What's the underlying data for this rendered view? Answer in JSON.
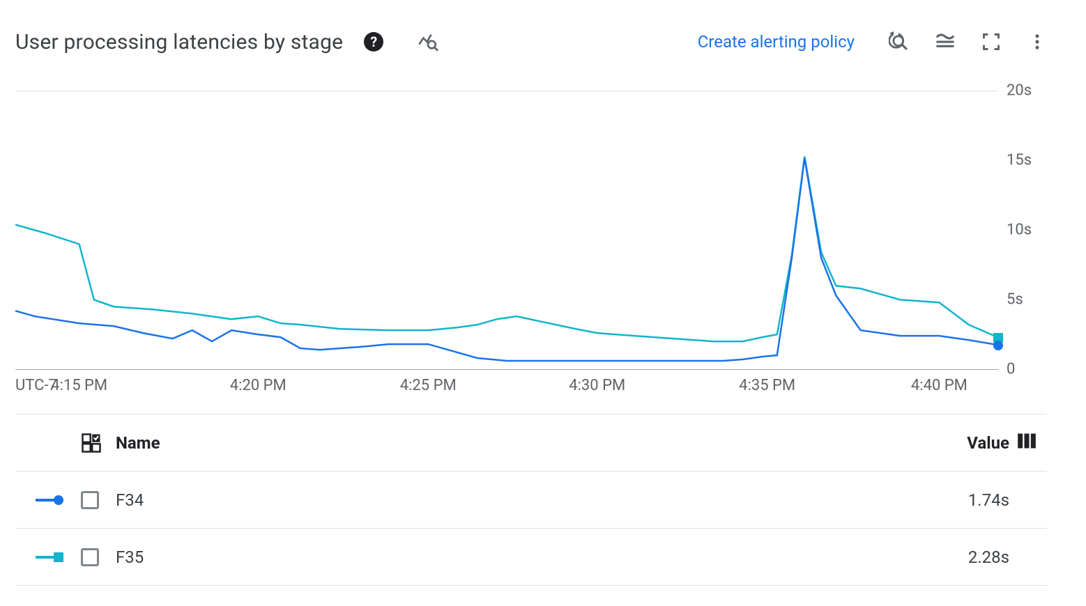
{
  "header": {
    "title": "User processing latencies by stage",
    "alert_link": "Create alerting policy"
  },
  "chart": {
    "type": "line",
    "timezone_label": "UTC-7",
    "y": {
      "min": 0,
      "max": 20,
      "step": 5,
      "labels": [
        "0",
        "5s",
        "10s",
        "15s",
        "20s"
      ]
    },
    "x": {
      "labels": [
        "4:15 PM",
        "4:20 PM",
        "4:25 PM",
        "4:30 PM",
        "4:35 PM",
        "4:40 PM"
      ],
      "positions_pct": [
        6.5,
        24.7,
        42.0,
        59.2,
        76.5,
        94.0
      ]
    },
    "colors": {
      "f34": "#1a73e8",
      "f35": "#12b5cb",
      "axis": "#9aa0a6",
      "text": "#5f6368",
      "grid_top": "#e0e0e0"
    },
    "line_width": 2.5,
    "series": {
      "f34": [
        [
          0,
          4.2
        ],
        [
          2,
          3.8
        ],
        [
          6.5,
          3.3
        ],
        [
          10,
          3.1
        ],
        [
          13,
          2.6
        ],
        [
          16,
          2.2
        ],
        [
          18,
          2.8
        ],
        [
          20,
          2.0
        ],
        [
          22,
          2.8
        ],
        [
          24.7,
          2.5
        ],
        [
          27,
          2.3
        ],
        [
          29,
          1.5
        ],
        [
          31,
          1.4
        ],
        [
          35,
          1.6
        ],
        [
          38,
          1.8
        ],
        [
          42,
          1.8
        ],
        [
          44,
          1.4
        ],
        [
          47,
          0.8
        ],
        [
          50,
          0.6
        ],
        [
          54,
          0.6
        ],
        [
          59.2,
          0.6
        ],
        [
          64,
          0.6
        ],
        [
          68,
          0.6
        ],
        [
          72,
          0.6
        ],
        [
          74,
          0.7
        ],
        [
          76,
          0.9
        ],
        [
          77.5,
          1.0
        ],
        [
          79,
          8.0
        ],
        [
          80.3,
          15.2
        ],
        [
          82,
          8.0
        ],
        [
          83.5,
          5.3
        ],
        [
          86,
          2.8
        ],
        [
          90,
          2.4
        ],
        [
          94,
          2.4
        ],
        [
          97,
          2.1
        ],
        [
          100,
          1.74
        ]
      ],
      "f35": [
        [
          0,
          10.4
        ],
        [
          3,
          9.8
        ],
        [
          6.5,
          9.0
        ],
        [
          8,
          5.0
        ],
        [
          10,
          4.5
        ],
        [
          14,
          4.3
        ],
        [
          18,
          4.0
        ],
        [
          22,
          3.6
        ],
        [
          24.7,
          3.8
        ],
        [
          27,
          3.3
        ],
        [
          29,
          3.2
        ],
        [
          33,
          2.9
        ],
        [
          38,
          2.8
        ],
        [
          42,
          2.8
        ],
        [
          45,
          3.0
        ],
        [
          47,
          3.2
        ],
        [
          49,
          3.6
        ],
        [
          51,
          3.8
        ],
        [
          53,
          3.5
        ],
        [
          57,
          2.9
        ],
        [
          59.2,
          2.6
        ],
        [
          63,
          2.4
        ],
        [
          67,
          2.2
        ],
        [
          71,
          2.0
        ],
        [
          74,
          2.0
        ],
        [
          76,
          2.3
        ],
        [
          77.5,
          2.5
        ],
        [
          79,
          8.2
        ],
        [
          80.3,
          15.3
        ],
        [
          82,
          8.4
        ],
        [
          83.5,
          6.0
        ],
        [
          86,
          5.8
        ],
        [
          90,
          5.0
        ],
        [
          94,
          4.8
        ],
        [
          97,
          3.2
        ],
        [
          100,
          2.28
        ]
      ]
    }
  },
  "legend": {
    "name_header": "Name",
    "value_header": "Value",
    "rows": [
      {
        "id": "f34",
        "label": "F34",
        "value": "1.74s",
        "marker": "circle",
        "color": "#1a73e8"
      },
      {
        "id": "f35",
        "label": "F35",
        "value": "2.28s",
        "marker": "square",
        "color": "#12b5cb"
      }
    ]
  }
}
